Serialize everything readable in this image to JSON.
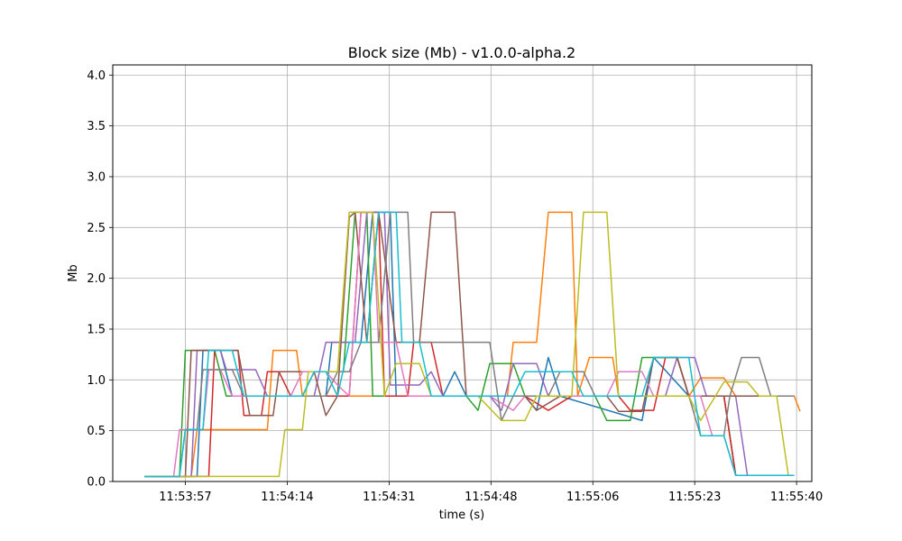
{
  "chart_data": {
    "type": "line",
    "title": "Block size (Mb)  -  v1.0.0-alpha.2",
    "xlabel": "time (s)",
    "ylabel": "Mb",
    "x_ticks": [
      "11:53:57",
      "11:54:14",
      "11:54:31",
      "11:54:48",
      "11:55:06",
      "11:55:23",
      "11:55:40"
    ],
    "x_tick_seconds": [
      0,
      17.4,
      34.8,
      52.2,
      69.6,
      87.0,
      104.4
    ],
    "xlim_seconds": [
      -12.4,
      107.0
    ],
    "y_ticks": [
      "0.0",
      "0.5",
      "1.0",
      "1.5",
      "2.0",
      "2.5",
      "3.0",
      "3.5",
      "4.0"
    ],
    "ylim": [
      0,
      4.1
    ],
    "grid": true,
    "x_unit": "seconds since 11:53:57",
    "series": [
      {
        "color": "#1f77b4",
        "points": [
          [
            -7,
            0.05
          ],
          [
            2,
            0.05
          ],
          [
            3,
            1.29
          ],
          [
            6,
            1.29
          ],
          [
            8,
            0.84
          ],
          [
            14,
            0.84
          ],
          [
            24,
            0.84
          ],
          [
            25,
            1.37
          ],
          [
            30,
            1.37
          ],
          [
            32,
            2.65
          ],
          [
            35,
            2.65
          ],
          [
            36,
            0.84
          ],
          [
            44,
            0.84
          ],
          [
            46,
            1.08
          ],
          [
            48,
            0.84
          ],
          [
            58,
            0.84
          ],
          [
            60,
            0.7
          ],
          [
            62,
            1.22
          ],
          [
            64,
            0.84
          ],
          [
            78,
            0.6
          ],
          [
            80,
            1.22
          ],
          [
            86,
            0.84
          ],
          [
            92,
            0.84
          ],
          [
            94,
            0.06
          ],
          [
            99,
            0.06
          ]
        ]
      },
      {
        "color": "#ff7f0e",
        "points": [
          [
            -7,
            0.05
          ],
          [
            1,
            0.05
          ],
          [
            2,
            0.51
          ],
          [
            14,
            0.51
          ],
          [
            15,
            1.29
          ],
          [
            19,
            1.29
          ],
          [
            20,
            0.84
          ],
          [
            44,
            0.84
          ],
          [
            55,
            0.84
          ],
          [
            56,
            1.37
          ],
          [
            60,
            1.37
          ],
          [
            62,
            2.65
          ],
          [
            66,
            2.65
          ],
          [
            67,
            0.84
          ],
          [
            69,
            1.22
          ],
          [
            73,
            1.22
          ],
          [
            74,
            0.84
          ],
          [
            86,
            0.84
          ],
          [
            88,
            1.02
          ],
          [
            92,
            1.02
          ],
          [
            94,
            0.84
          ],
          [
            104,
            0.84
          ],
          [
            105,
            0.69
          ]
        ]
      },
      {
        "color": "#2ca02c",
        "points": [
          [
            -7,
            0.05
          ],
          [
            -1,
            0.05
          ],
          [
            0,
            1.29
          ],
          [
            5,
            1.29
          ],
          [
            7,
            0.84
          ],
          [
            20,
            0.84
          ],
          [
            22,
            1.08
          ],
          [
            27,
            1.08
          ],
          [
            29,
            2.65
          ],
          [
            31,
            2.65
          ],
          [
            32,
            0.84
          ],
          [
            48,
            0.84
          ],
          [
            50,
            0.7
          ],
          [
            52,
            1.16
          ],
          [
            56,
            1.16
          ],
          [
            58,
            0.84
          ],
          [
            70,
            0.84
          ],
          [
            72,
            0.6
          ],
          [
            76,
            0.6
          ],
          [
            78,
            1.22
          ],
          [
            84,
            1.22
          ],
          [
            86,
            0.84
          ],
          [
            92,
            0.84
          ],
          [
            94,
            0.06
          ],
          [
            99,
            0.06
          ]
        ]
      },
      {
        "color": "#d62728",
        "points": [
          [
            -7,
            0.05
          ],
          [
            4,
            0.05
          ],
          [
            5,
            1.29
          ],
          [
            9,
            1.29
          ],
          [
            10,
            0.65
          ],
          [
            13,
            0.65
          ],
          [
            14,
            1.08
          ],
          [
            16,
            1.08
          ],
          [
            18,
            0.84
          ],
          [
            28,
            0.84
          ],
          [
            30,
            2.65
          ],
          [
            33,
            2.65
          ],
          [
            34,
            0.84
          ],
          [
            38,
            0.84
          ],
          [
            39,
            1.37
          ],
          [
            42,
            1.37
          ],
          [
            44,
            0.84
          ],
          [
            56,
            0.84
          ],
          [
            58,
            0.84
          ],
          [
            62,
            0.7
          ],
          [
            66,
            0.84
          ],
          [
            74,
            0.84
          ],
          [
            76,
            0.7
          ],
          [
            80,
            0.7
          ],
          [
            82,
            1.22
          ],
          [
            84,
            1.22
          ],
          [
            86,
            0.84
          ],
          [
            92,
            0.84
          ],
          [
            94,
            0.06
          ],
          [
            100,
            0.06
          ]
        ]
      },
      {
        "color": "#9467bd",
        "points": [
          [
            -7,
            0.05
          ],
          [
            1,
            0.05
          ],
          [
            2,
            1.29
          ],
          [
            6,
            1.29
          ],
          [
            7,
            1.1
          ],
          [
            12,
            1.1
          ],
          [
            14,
            0.84
          ],
          [
            22,
            0.84
          ],
          [
            24,
            1.37
          ],
          [
            29,
            1.37
          ],
          [
            31,
            2.65
          ],
          [
            34,
            2.65
          ],
          [
            35,
            0.95
          ],
          [
            40,
            0.95
          ],
          [
            42,
            1.08
          ],
          [
            44,
            0.84
          ],
          [
            52,
            0.84
          ],
          [
            54,
            0.7
          ],
          [
            56,
            1.16
          ],
          [
            60,
            1.16
          ],
          [
            62,
            0.84
          ],
          [
            82,
            0.84
          ],
          [
            84,
            1.22
          ],
          [
            87,
            1.22
          ],
          [
            89,
            0.84
          ],
          [
            94,
            0.84
          ],
          [
            96,
            0.06
          ],
          [
            101,
            0.06
          ]
        ]
      },
      {
        "color": "#8c564b",
        "points": [
          [
            -7,
            0.05
          ],
          [
            0,
            0.05
          ],
          [
            1,
            1.29
          ],
          [
            9,
            1.29
          ],
          [
            11,
            0.65
          ],
          [
            15,
            0.65
          ],
          [
            16,
            1.08
          ],
          [
            22,
            1.08
          ],
          [
            24,
            0.65
          ],
          [
            26,
            0.84
          ],
          [
            28,
            2.6
          ],
          [
            29,
            2.65
          ],
          [
            31,
            1.37
          ],
          [
            33,
            2.65
          ],
          [
            36,
            1.37
          ],
          [
            40,
            1.37
          ],
          [
            42,
            2.65
          ],
          [
            46,
            2.65
          ],
          [
            48,
            0.84
          ],
          [
            58,
            0.84
          ],
          [
            60,
            0.7
          ],
          [
            64,
            0.84
          ],
          [
            72,
            0.84
          ],
          [
            74,
            0.69
          ],
          [
            78,
            0.69
          ],
          [
            80,
            1.22
          ],
          [
            84,
            1.22
          ],
          [
            86,
            0.84
          ],
          [
            104,
            0.84
          ]
        ]
      },
      {
        "color": "#e377c2",
        "points": [
          [
            -7,
            0.05
          ],
          [
            -2,
            0.05
          ],
          [
            -1,
            0.51
          ],
          [
            3,
            0.51
          ],
          [
            4,
            1.1
          ],
          [
            6,
            1.1
          ],
          [
            8,
            0.84
          ],
          [
            18,
            0.84
          ],
          [
            20,
            1.08
          ],
          [
            24,
            1.08
          ],
          [
            26,
            0.95
          ],
          [
            28,
            0.84
          ],
          [
            30,
            2.65
          ],
          [
            32,
            2.65
          ],
          [
            33,
            1.37
          ],
          [
            36,
            1.37
          ],
          [
            38,
            0.84
          ],
          [
            50,
            0.84
          ],
          [
            52,
            0.84
          ],
          [
            56,
            0.7
          ],
          [
            58,
            0.84
          ],
          [
            72,
            0.84
          ],
          [
            74,
            1.08
          ],
          [
            78,
            1.08
          ],
          [
            80,
            0.84
          ],
          [
            88,
            0.84
          ],
          [
            90,
            0.45
          ],
          [
            92,
            0.45
          ],
          [
            94,
            0.06
          ],
          [
            99,
            0.06
          ]
        ]
      },
      {
        "color": "#7f7f7f",
        "points": [
          [
            -7,
            0.05
          ],
          [
            -1,
            0.05
          ],
          [
            0,
            0.51
          ],
          [
            2,
            0.51
          ],
          [
            3,
            1.1
          ],
          [
            8,
            1.1
          ],
          [
            10,
            0.84
          ],
          [
            24,
            0.84
          ],
          [
            26,
            1.08
          ],
          [
            28,
            1.08
          ],
          [
            30,
            1.37
          ],
          [
            33,
            1.37
          ],
          [
            35,
            2.65
          ],
          [
            38,
            2.65
          ],
          [
            39,
            1.37
          ],
          [
            52,
            1.37
          ],
          [
            54,
            0.6
          ],
          [
            56,
            0.84
          ],
          [
            62,
            0.84
          ],
          [
            64,
            1.08
          ],
          [
            68,
            1.08
          ],
          [
            70,
            0.84
          ],
          [
            86,
            0.84
          ],
          [
            88,
            0.45
          ],
          [
            92,
            0.45
          ],
          [
            93,
            0.84
          ],
          [
            95,
            1.22
          ],
          [
            98,
            1.22
          ],
          [
            100,
            0.84
          ],
          [
            104,
            0.84
          ]
        ]
      },
      {
        "color": "#bcbd22",
        "points": [
          [
            -7,
            0.05
          ],
          [
            4,
            0.05
          ],
          [
            5,
            0.05
          ],
          [
            16,
            0.05
          ],
          [
            17,
            0.51
          ],
          [
            20,
            0.51
          ],
          [
            21,
            1.08
          ],
          [
            26,
            1.08
          ],
          [
            28,
            2.65
          ],
          [
            32,
            2.65
          ],
          [
            34,
            0.84
          ],
          [
            36,
            1.16
          ],
          [
            40,
            1.16
          ],
          [
            42,
            0.84
          ],
          [
            48,
            0.84
          ],
          [
            50,
            0.84
          ],
          [
            54,
            0.6
          ],
          [
            58,
            0.6
          ],
          [
            60,
            0.84
          ],
          [
            66,
            0.84
          ],
          [
            68,
            2.65
          ],
          [
            72,
            2.65
          ],
          [
            74,
            0.84
          ],
          [
            86,
            0.84
          ],
          [
            88,
            0.6
          ],
          [
            92,
            0.98
          ],
          [
            96,
            0.98
          ],
          [
            98,
            0.84
          ],
          [
            101,
            0.84
          ],
          [
            103,
            0.06
          ],
          [
            104,
            0.06
          ]
        ]
      },
      {
        "color": "#17becf",
        "points": [
          [
            -7,
            0.05
          ],
          [
            -1,
            0.05
          ],
          [
            0,
            0.51
          ],
          [
            3,
            0.51
          ],
          [
            4,
            1.29
          ],
          [
            8,
            1.29
          ],
          [
            10,
            0.84
          ],
          [
            20,
            0.84
          ],
          [
            22,
            1.08
          ],
          [
            24,
            1.08
          ],
          [
            26,
            0.84
          ],
          [
            28,
            1.37
          ],
          [
            31,
            1.37
          ],
          [
            33,
            2.65
          ],
          [
            36,
            2.65
          ],
          [
            37,
            1.37
          ],
          [
            40,
            1.37
          ],
          [
            42,
            0.84
          ],
          [
            54,
            0.84
          ],
          [
            56,
            0.84
          ],
          [
            58,
            1.08
          ],
          [
            66,
            1.08
          ],
          [
            68,
            0.84
          ],
          [
            78,
            0.84
          ],
          [
            80,
            1.22
          ],
          [
            86,
            1.22
          ],
          [
            88,
            0.45
          ],
          [
            92,
            0.45
          ],
          [
            94,
            0.06
          ],
          [
            104,
            0.06
          ]
        ]
      }
    ]
  }
}
